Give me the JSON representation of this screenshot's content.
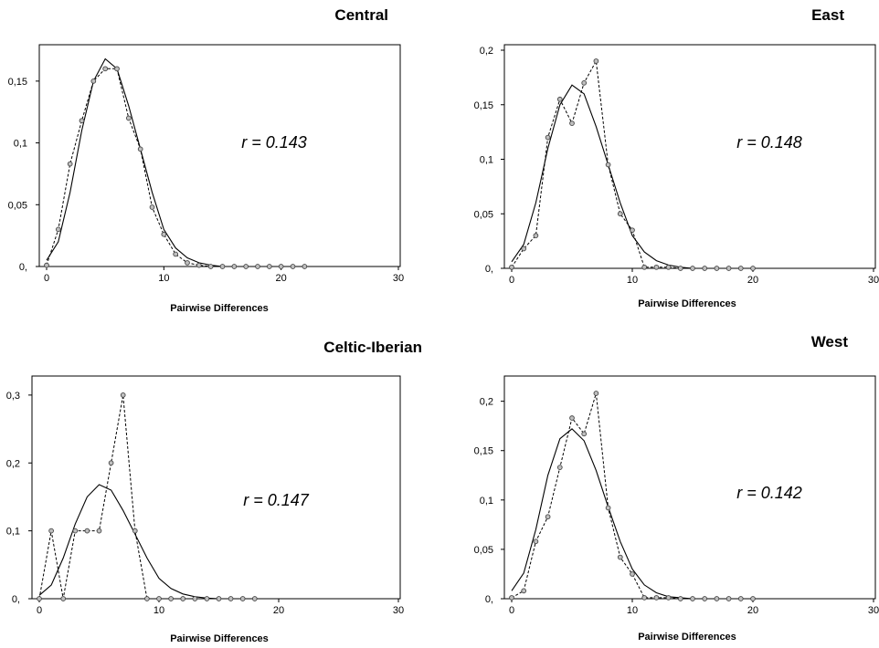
{
  "chart_data": [
    {
      "type": "line",
      "title": "Central",
      "xlabel": "Pairwise Differences",
      "ylabel": "",
      "annotation": "r = 0.143",
      "xlim": [
        0,
        30
      ],
      "ylim": [
        0,
        0.175
      ],
      "x_ticks": [
        0,
        10,
        20,
        30
      ],
      "x_tick_labels": [
        "0",
        "10",
        "20",
        "30"
      ],
      "y_ticks": [
        0,
        0.05,
        0.1,
        0.15
      ],
      "y_tick_labels": [
        "0,",
        "0,05",
        "0,1",
        "0,15"
      ],
      "series": [
        {
          "style": "solid",
          "x": [
            0,
            1,
            2,
            3,
            4,
            5,
            6,
            7,
            8,
            9,
            10,
            11,
            12,
            13,
            14,
            15,
            16,
            17,
            18,
            19,
            20,
            21,
            22,
            23,
            24,
            25,
            26,
            27,
            28,
            29,
            30
          ],
          "values": [
            0.005,
            0.02,
            0.06,
            0.11,
            0.15,
            0.168,
            0.16,
            0.13,
            0.095,
            0.06,
            0.03,
            0.015,
            0.007,
            0.003,
            0.001,
            0,
            0,
            0,
            0,
            0,
            0,
            0,
            0,
            0,
            0,
            0,
            0,
            0,
            0,
            0,
            0
          ]
        },
        {
          "style": "dashed-markers",
          "x": [
            0,
            1,
            2,
            3,
            4,
            5,
            6,
            7,
            8,
            9,
            10,
            11,
            12,
            13,
            14,
            15,
            16,
            17,
            18,
            19,
            20,
            21,
            22
          ],
          "values": [
            0.001,
            0.03,
            0.083,
            0.118,
            0.15,
            0.16,
            0.16,
            0.12,
            0.095,
            0.048,
            0.026,
            0.01,
            0.003,
            0.001,
            0,
            0,
            0,
            0,
            0,
            0,
            0,
            0,
            0
          ]
        }
      ]
    },
    {
      "type": "line",
      "title": "East",
      "xlabel": "Pairwise Differences",
      "ylabel": "",
      "annotation": "r = 0.148",
      "xlim": [
        0,
        30
      ],
      "ylim": [
        0,
        0.2
      ],
      "x_ticks": [
        0,
        10,
        20,
        30
      ],
      "x_tick_labels": [
        "0",
        "10",
        "20",
        "30"
      ],
      "y_ticks": [
        0,
        0.05,
        0.1,
        0.15,
        0.2
      ],
      "y_tick_labels": [
        "0,",
        "0,05",
        "0,1",
        "0,15",
        "0,2"
      ],
      "series": [
        {
          "style": "solid",
          "x": [
            0,
            1,
            2,
            3,
            4,
            5,
            6,
            7,
            8,
            9,
            10,
            11,
            12,
            13,
            14,
            15,
            16,
            17,
            18,
            19,
            20,
            21,
            22,
            23,
            24,
            25,
            26,
            27,
            28,
            29,
            30
          ],
          "values": [
            0.006,
            0.022,
            0.06,
            0.11,
            0.15,
            0.168,
            0.16,
            0.13,
            0.095,
            0.06,
            0.03,
            0.015,
            0.007,
            0.003,
            0.001,
            0,
            0,
            0,
            0,
            0,
            0,
            0,
            0,
            0,
            0,
            0,
            0,
            0,
            0,
            0,
            0
          ]
        },
        {
          "style": "dashed-markers",
          "x": [
            0,
            1,
            2,
            3,
            4,
            5,
            6,
            7,
            8,
            9,
            10,
            11,
            12,
            13,
            14,
            15,
            16,
            17,
            18,
            19,
            20
          ],
          "values": [
            0.001,
            0.018,
            0.03,
            0.12,
            0.155,
            0.133,
            0.17,
            0.19,
            0.095,
            0.05,
            0.035,
            0.001,
            0.001,
            0.001,
            0,
            0,
            0,
            0,
            0,
            0,
            0
          ]
        }
      ]
    },
    {
      "type": "line",
      "title": "Celtic-Iberian",
      "xlabel": "Pairwise Differences",
      "ylabel": "",
      "annotation": "r = 0.147",
      "xlim": [
        0,
        30
      ],
      "ylim": [
        0,
        0.32
      ],
      "x_ticks": [
        0,
        10,
        20,
        30
      ],
      "x_tick_labels": [
        "0",
        "10",
        "20",
        "30"
      ],
      "y_ticks": [
        0,
        0.1,
        0.2,
        0.3
      ],
      "y_tick_labels": [
        "0,",
        "0,1",
        "0,2",
        "0,3"
      ],
      "series": [
        {
          "style": "solid",
          "x": [
            0,
            1,
            2,
            3,
            4,
            5,
            6,
            7,
            8,
            9,
            10,
            11,
            12,
            13,
            14,
            15,
            16,
            17,
            18,
            19,
            20,
            21,
            22,
            23,
            24,
            25,
            26,
            27,
            28,
            29,
            30
          ],
          "values": [
            0.005,
            0.02,
            0.06,
            0.11,
            0.15,
            0.168,
            0.16,
            0.13,
            0.095,
            0.06,
            0.03,
            0.015,
            0.007,
            0.003,
            0.001,
            0,
            0,
            0,
            0,
            0,
            0,
            0,
            0,
            0,
            0,
            0,
            0,
            0,
            0,
            0,
            0
          ]
        },
        {
          "style": "dashed-markers",
          "x": [
            0,
            1,
            2,
            3,
            4,
            5,
            6,
            7,
            8,
            9,
            10,
            11,
            12,
            13,
            14,
            15,
            16,
            17,
            18
          ],
          "values": [
            0,
            0.1,
            0,
            0.1,
            0.1,
            0.1,
            0.2,
            0.3,
            0.1,
            0,
            0,
            0,
            0,
            0,
            0,
            0,
            0,
            0,
            0
          ]
        }
      ]
    },
    {
      "type": "line",
      "title": "West",
      "xlabel": "Pairwise Differences",
      "ylabel": "",
      "annotation": "r = 0.142",
      "xlim": [
        0,
        30
      ],
      "ylim": [
        0,
        0.22
      ],
      "x_ticks": [
        0,
        10,
        20,
        30
      ],
      "x_tick_labels": [
        "0",
        "10",
        "20",
        "30"
      ],
      "y_ticks": [
        0,
        0.05,
        0.1,
        0.15,
        0.2
      ],
      "y_tick_labels": [
        "0,",
        "0,05",
        "0,1",
        "0,15",
        "0,2"
      ],
      "series": [
        {
          "style": "solid",
          "x": [
            0,
            1,
            2,
            3,
            4,
            5,
            6,
            7,
            8,
            9,
            10,
            11,
            12,
            13,
            14,
            15,
            16,
            17,
            18,
            19,
            20,
            21,
            22,
            23,
            24,
            25,
            26,
            27,
            28,
            29,
            30
          ],
          "values": [
            0.008,
            0.026,
            0.07,
            0.125,
            0.162,
            0.172,
            0.16,
            0.13,
            0.093,
            0.058,
            0.03,
            0.014,
            0.006,
            0.002,
            0.001,
            0,
            0,
            0,
            0,
            0,
            0,
            0,
            0,
            0,
            0,
            0,
            0,
            0,
            0,
            0,
            0
          ]
        },
        {
          "style": "dashed-markers",
          "x": [
            0,
            1,
            2,
            3,
            4,
            5,
            6,
            7,
            8,
            9,
            10,
            11,
            12,
            13,
            14,
            15,
            16,
            17,
            18,
            19,
            20
          ],
          "values": [
            0.001,
            0.008,
            0.058,
            0.083,
            0.133,
            0.183,
            0.167,
            0.208,
            0.092,
            0.042,
            0.025,
            0.001,
            0.001,
            0.001,
            0,
            0,
            0,
            0,
            0,
            0,
            0
          ]
        }
      ]
    }
  ]
}
